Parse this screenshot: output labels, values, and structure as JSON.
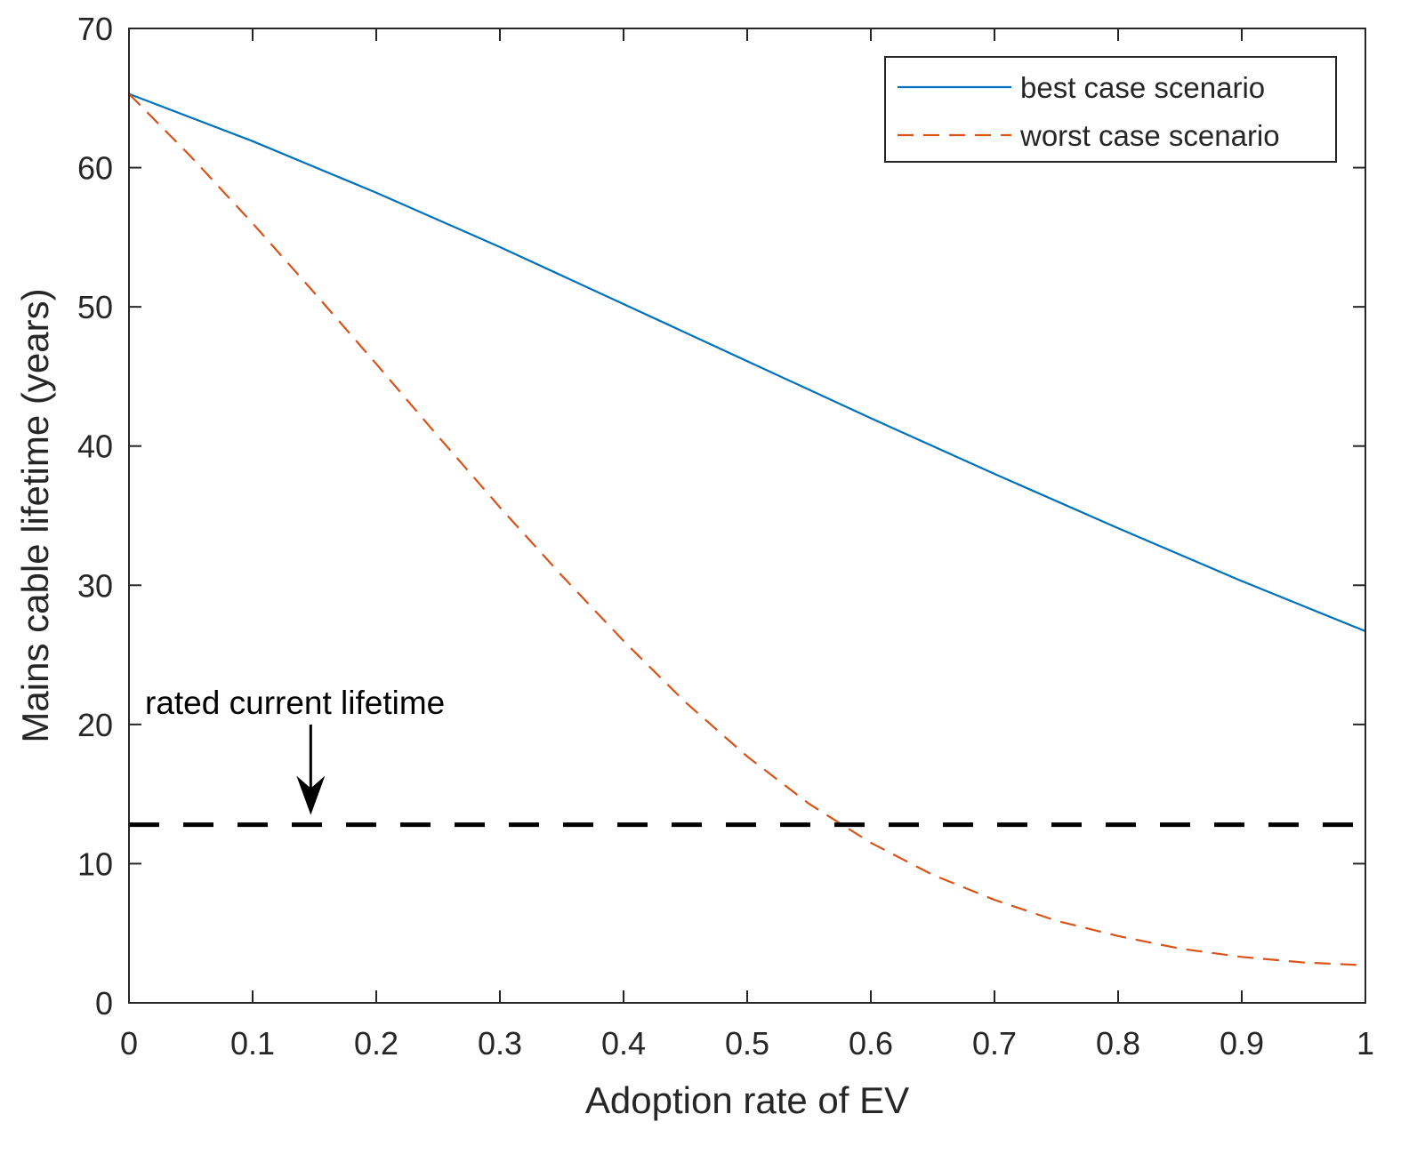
{
  "chart_data": {
    "type": "line",
    "xlabel": "Adoption rate of EV",
    "ylabel": "Mains cable lifetime (years)",
    "xlim": [
      0,
      1
    ],
    "ylim": [
      0,
      70
    ],
    "xticks": [
      0,
      0.1,
      0.2,
      0.3,
      0.4,
      0.5,
      0.6,
      0.7,
      0.8,
      0.9,
      1
    ],
    "xtick_labels": [
      "0",
      "0.1",
      "0.2",
      "0.3",
      "0.4",
      "0.5",
      "0.6",
      "0.7",
      "0.8",
      "0.9",
      "1"
    ],
    "yticks": [
      0,
      10,
      20,
      30,
      40,
      50,
      60,
      70
    ],
    "ytick_labels": [
      "0",
      "10",
      "20",
      "30",
      "40",
      "50",
      "60",
      "70"
    ],
    "grid": false,
    "legend_position": "top-right",
    "series": [
      {
        "name": "best case scenario",
        "color": "#0072BD",
        "style": "solid",
        "x": [
          0,
          0.1,
          0.2,
          0.3,
          0.4,
          0.5,
          0.6,
          0.7,
          0.8,
          0.9,
          1.0
        ],
        "y": [
          65.3,
          61.9,
          58.2,
          54.3,
          50.2,
          46.1,
          42.0,
          38.0,
          34.1,
          30.3,
          26.7
        ]
      },
      {
        "name": "worst case scenario",
        "color": "#D95319",
        "style": "dashed",
        "x": [
          0,
          0.05,
          0.1,
          0.15,
          0.2,
          0.25,
          0.3,
          0.35,
          0.4,
          0.45,
          0.5,
          0.55,
          0.6,
          0.65,
          0.7,
          0.75,
          0.8,
          0.85,
          0.9,
          0.95,
          1.0
        ],
        "y": [
          65.3,
          60.8,
          56.0,
          51.0,
          45.9,
          40.7,
          35.6,
          30.7,
          26.0,
          21.6,
          17.7,
          14.3,
          11.5,
          9.2,
          7.4,
          5.9,
          4.8,
          3.9,
          3.3,
          2.9,
          2.7
        ]
      }
    ],
    "reference_line": {
      "name": "rated current lifetime",
      "y": 12.8,
      "color": "#000000",
      "style": "dashed"
    },
    "annotations": [
      {
        "text": "rated current lifetime",
        "arrow_to_x": 0.147,
        "arrow_to_y": 13.5
      }
    ]
  }
}
